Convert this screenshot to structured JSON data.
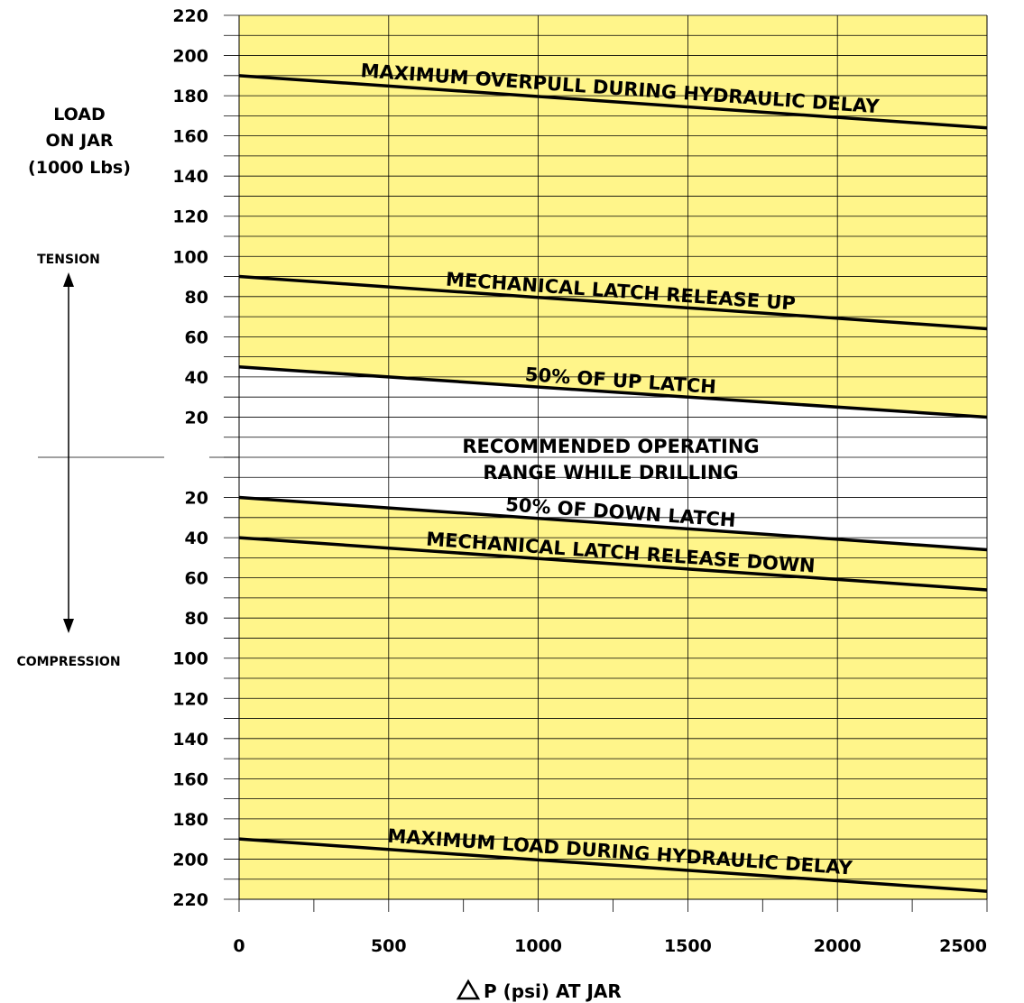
{
  "chart_data": {
    "type": "line",
    "title": "",
    "xlabel": "P (psi) AT JAR",
    "ylabel_lines": [
      "LOAD",
      "ON JAR",
      "(1000 Lbs)"
    ],
    "direction_labels": {
      "up": "TENSION",
      "down": "COMPRESSION"
    },
    "xlim": [
      0,
      2500
    ],
    "ylim": [
      -220,
      220
    ],
    "x_ticks": [
      0,
      500,
      1000,
      1500,
      2000,
      2500
    ],
    "x_tick_labels": [
      "0",
      "500",
      "1000",
      "1500",
      "2000",
      "2500"
    ],
    "y_ticks": [
      220,
      200,
      180,
      160,
      140,
      120,
      100,
      80,
      60,
      40,
      20,
      -20,
      -40,
      -60,
      -80,
      -100,
      -120,
      -140,
      -160,
      -180,
      -200,
      -220
    ],
    "y_tick_labels": [
      "220",
      "200",
      "180",
      "160",
      "140",
      "120",
      "100",
      "80",
      "60",
      "40",
      "20",
      "20",
      "40",
      "60",
      "80",
      "100",
      "120",
      "140",
      "160",
      "180",
      "200",
      "220"
    ],
    "grid": true,
    "shading": {
      "color": "#fff58a",
      "safe_band": [
        -20,
        45
      ]
    },
    "series": [
      {
        "name": "MAXIMUM OVERPULL DURING HYDRAULIC DELAY",
        "x": [
          0,
          2500
        ],
        "y": [
          190,
          164
        ]
      },
      {
        "name": "MECHANICAL LATCH RELEASE UP",
        "x": [
          0,
          2500
        ],
        "y": [
          90,
          64
        ]
      },
      {
        "name": "50% OF UP LATCH",
        "x": [
          0,
          2500
        ],
        "y": [
          45,
          20
        ]
      },
      {
        "name": "50% OF DOWN LATCH",
        "x": [
          0,
          2500
        ],
        "y": [
          -20,
          -46
        ]
      },
      {
        "name": "MECHANICAL LATCH RELEASE DOWN",
        "x": [
          0,
          2500
        ],
        "y": [
          -40,
          -66
        ]
      },
      {
        "name": "MAXIMUM LOAD DURING HYDRAULIC DELAY",
        "x": [
          0,
          2500
        ],
        "y": [
          -190,
          -216
        ]
      }
    ],
    "annotations": [
      {
        "text_lines": [
          "RECOMMENDED  OPERATING",
          "RANGE WHILE DRILLING"
        ],
        "x": 1250,
        "y": 5
      }
    ]
  }
}
